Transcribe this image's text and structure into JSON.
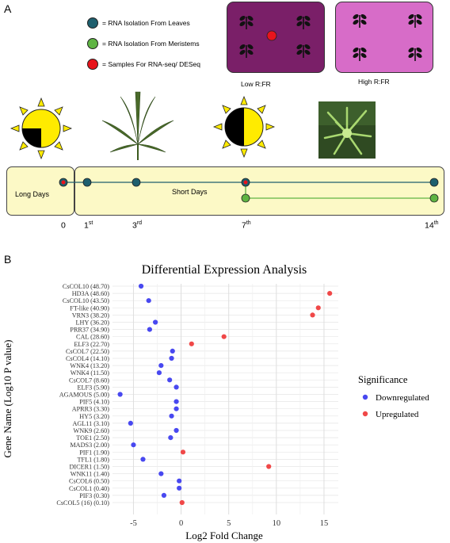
{
  "panel_a": {
    "letter": "A",
    "legend": [
      {
        "label": "= RNA Isolation From Leaves",
        "color": "#1e5f6e"
      },
      {
        "label": "= RNA Isolation From Meristems",
        "color": "#5fb443"
      },
      {
        "label": "= Samples For RNA-seq/ DESeq",
        "color": "#e8141c"
      }
    ],
    "low_rfr": {
      "label": "Low R:FR",
      "color": "#7a1f68"
    },
    "high_rfr": {
      "label": "High R:FR",
      "color": "#d76cc8"
    },
    "timeline": {
      "long_days_label": "Long Days",
      "short_days_label": "Short Days",
      "leaf_line_color": "#1e5f6e",
      "meristem_line_color": "#5fb443",
      "day_labels": [
        {
          "num": "0",
          "sup": ""
        },
        {
          "num": "1",
          "sup": "st"
        },
        {
          "num": "3",
          "sup": "rd"
        },
        {
          "num": "7",
          "sup": "th"
        },
        {
          "num": "14",
          "sup": "th"
        }
      ]
    }
  },
  "panel_b": {
    "letter": "B",
    "chart_data": {
      "type": "scatter",
      "title": "Differential Expression Analysis",
      "xlabel": "Log2 Fold Change",
      "ylabel": "Gene Name (Log10 P value)",
      "xlim": [
        -7.2,
        16.5
      ],
      "xticks": [
        -5,
        0,
        5,
        10,
        15
      ],
      "xtick_labels": [
        "-5",
        "0",
        "5",
        "10",
        "15"
      ],
      "grid": true,
      "legend_title": "Significance",
      "legend_position": "right",
      "series": [
        {
          "name": "Downregulated",
          "color": "#4848f0"
        },
        {
          "name": "Upregulated",
          "color": "#f04848"
        }
      ],
      "categories": [
        "CsCOL10 (48.70)",
        "HD3A (48.60)",
        "CsCOL10 (43.50)",
        "FT-like (40.90)",
        "VRN3 (38.20)",
        "LHY (36.20)",
        "PRR37 (34.90)",
        "CAL (28.60)",
        "ELF3 (22.70)",
        "CsCOL7 (22.50)",
        "CsCOL4 (14.10)",
        "WNK4 (13.20)",
        "WNK4 (11.50)",
        "CsCOL7 (8.60)",
        "ELF3 (5.90)",
        "AGAMOUS (5.00)",
        "PIF5 (4.10)",
        "APRR3 (3.30)",
        "HY5 (3.20)",
        "AGL11 (3.10)",
        "WNK9 (2.60)",
        "TOE1 (2.50)",
        "MADS3 (2.00)",
        "PIF1 (1.90)",
        "TFL1 (1.80)",
        "DICER1 (1.50)",
        "WNK11 (1.40)",
        "CsCOL6 (0.50)",
        "CsCOL1 (0.40)",
        "PIF3 (0.30)",
        "CsCOL5 (16) (0.10)"
      ],
      "x": [
        -4.2,
        15.6,
        -3.4,
        14.4,
        13.8,
        -2.7,
        -3.3,
        4.5,
        1.1,
        -0.9,
        -1.0,
        -2.1,
        -2.3,
        -1.2,
        -0.5,
        -6.4,
        -0.5,
        -0.5,
        -1.0,
        -5.3,
        -0.5,
        -1.1,
        -5.0,
        0.2,
        -4.0,
        9.2,
        -2.1,
        -0.2,
        -0.2,
        -1.8,
        0.1
      ],
      "significance": [
        "Downregulated",
        "Upregulated",
        "Downregulated",
        "Upregulated",
        "Upregulated",
        "Downregulated",
        "Downregulated",
        "Upregulated",
        "Upregulated",
        "Downregulated",
        "Downregulated",
        "Downregulated",
        "Downregulated",
        "Downregulated",
        "Downregulated",
        "Downregulated",
        "Downregulated",
        "Downregulated",
        "Downregulated",
        "Downregulated",
        "Downregulated",
        "Downregulated",
        "Downregulated",
        "Upregulated",
        "Downregulated",
        "Upregulated",
        "Downregulated",
        "Downregulated",
        "Downregulated",
        "Downregulated",
        "Upregulated"
      ]
    }
  }
}
